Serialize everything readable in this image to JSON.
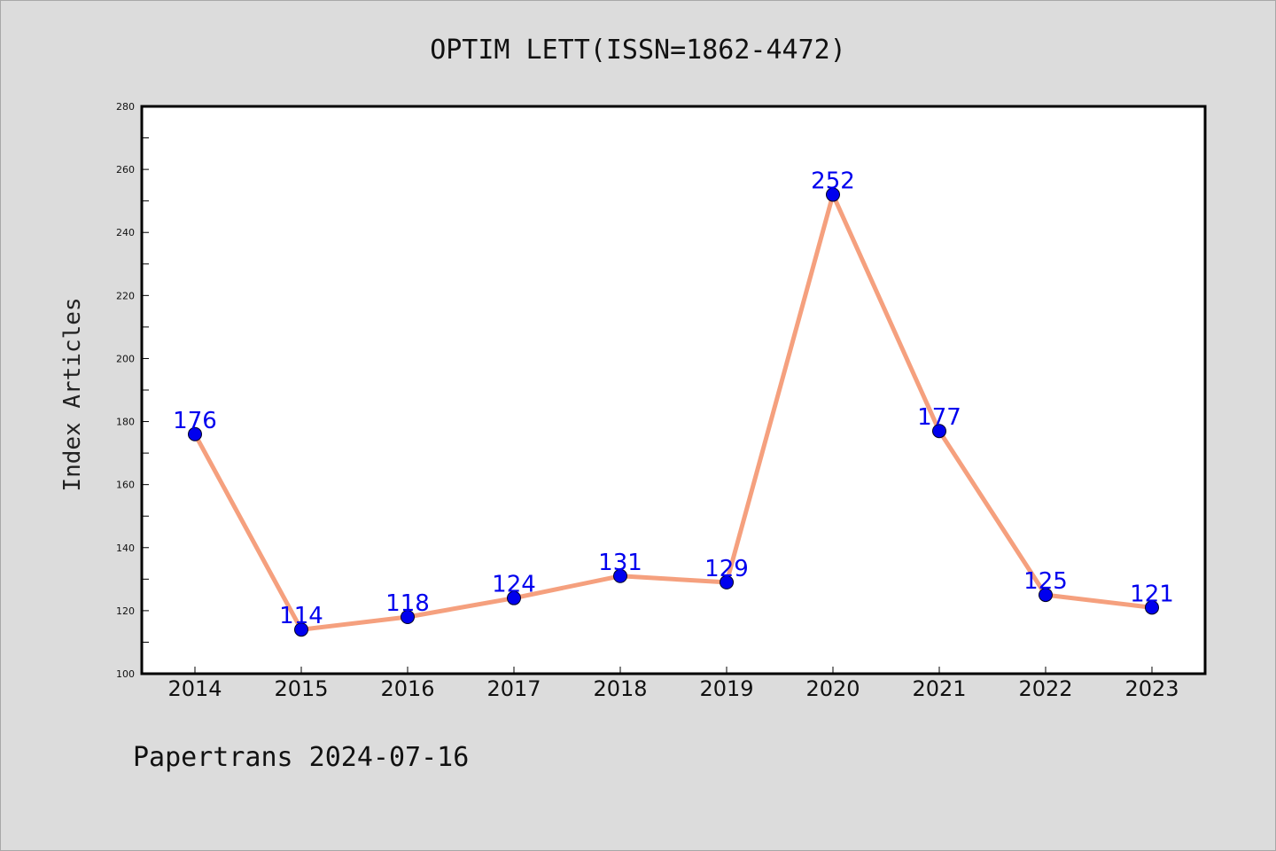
{
  "colors": {
    "background": "#dcdcdc",
    "plot_background": "#ffffff",
    "line": "#f5a07e",
    "marker": "#0000ee",
    "data_label": "#0000ee"
  },
  "footer": "Papertrans 2024-07-16",
  "chart_data": {
    "type": "line",
    "title": "OPTIM LETT(ISSN=1862-4472)",
    "xlabel": "",
    "ylabel": "Index Articles",
    "categories": [
      "2014",
      "2015",
      "2016",
      "2017",
      "2018",
      "2019",
      "2020",
      "2021",
      "2022",
      "2023"
    ],
    "series": [
      {
        "values": [
          176,
          114,
          118,
          124,
          131,
          129,
          252,
          177,
          125,
          121
        ]
      }
    ],
    "ylim": [
      100,
      280
    ],
    "yticks": [
      100,
      120,
      140,
      160,
      180,
      200,
      220,
      240,
      260,
      280
    ],
    "grid": false,
    "legend": "none",
    "data_labels": true
  }
}
